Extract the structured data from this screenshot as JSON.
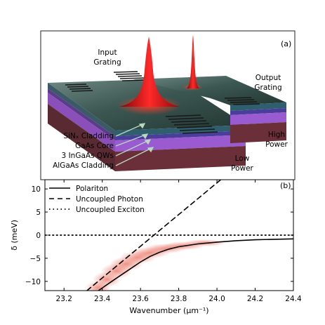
{
  "panel_a": {
    "label": "(a)",
    "callouts": {
      "input_grating": [
        "Input",
        "Grating"
      ],
      "output_grating": [
        "Output",
        "Grating"
      ],
      "high_power": [
        "High",
        "Power"
      ],
      "low_power": [
        "Low",
        "Power"
      ]
    },
    "layers": [
      "SiNₓ Cladding",
      "GaAs Core",
      "3 InGaAs QWs",
      "AlGaAs Cladding"
    ]
  },
  "panel_b": {
    "label": "(b)"
  },
  "chart_data": {
    "type": "line",
    "xlabel": "Wavenumber (μm⁻¹)",
    "ylabel": "δ (meV)",
    "xlim": [
      23.1,
      24.4
    ],
    "ylim": [
      -12,
      12
    ],
    "xticks": [
      23.2,
      23.4,
      23.6,
      23.8,
      24.0,
      24.2,
      24.4
    ],
    "yticks": [
      10,
      5,
      0,
      -5,
      -10
    ],
    "grid": false,
    "legend_position": "top-left",
    "series": [
      {
        "name": "Polariton",
        "style": "solid",
        "color": "#000000",
        "x": [
          23.38,
          23.45,
          23.5,
          23.55,
          23.6,
          23.65,
          23.7,
          23.75,
          23.8,
          23.9,
          24.0,
          24.1,
          24.2,
          24.3,
          24.4
        ],
        "y": [
          -12.0,
          -10.0,
          -8.6,
          -7.2,
          -5.8,
          -4.6,
          -3.7,
          -3.0,
          -2.5,
          -1.9,
          -1.5,
          -1.2,
          -1.0,
          -0.9,
          -0.8
        ]
      },
      {
        "name": "Uncoupled Photon",
        "style": "dashed",
        "color": "#000000",
        "x": [
          23.32,
          24.02
        ],
        "y": [
          -12.0,
          12.0
        ]
      },
      {
        "name": "Uncoupled Exciton",
        "style": "dotted",
        "color": "#000000",
        "x": [
          23.1,
          24.4
        ],
        "y": [
          0.0,
          0.0
        ]
      }
    ],
    "heatmap_color": "#e0341c"
  }
}
